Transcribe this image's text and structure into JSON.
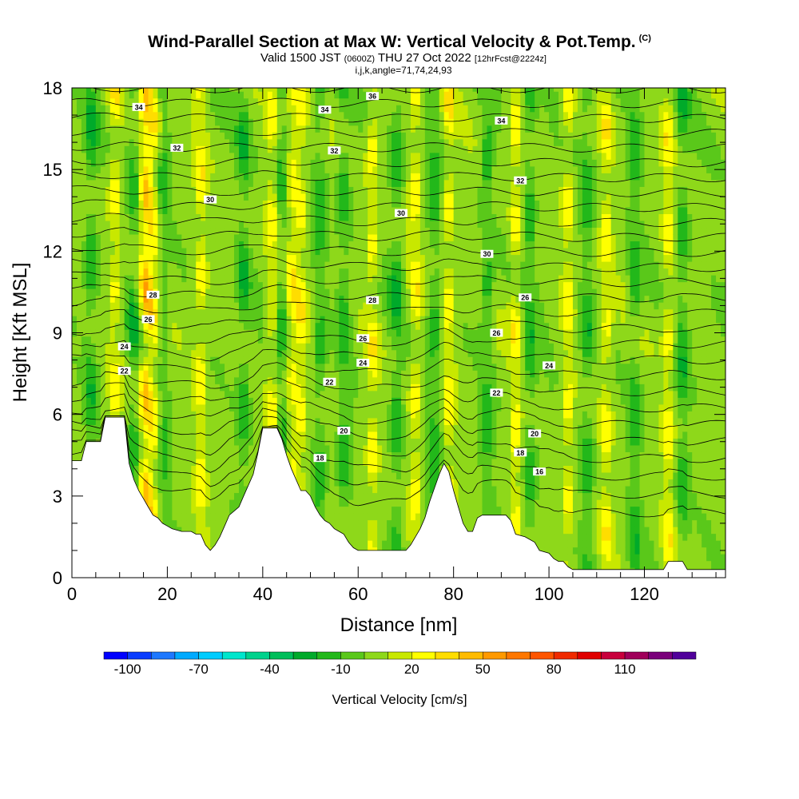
{
  "title": {
    "main": "Wind-Parallel Section at Max W: Vertical Velocity & Pot.Temp.",
    "copyright": "(C)",
    "valid_prefix": "Valid 1500 JST",
    "valid_utc": "(0600Z)",
    "valid_date": "THU 27 Oct 2022",
    "forecast": "[12hrFcst@2224z]",
    "indices": "i,j,k,angle=71,74,24,93"
  },
  "chart_data": {
    "type": "heatmap",
    "xlabel": "Distance [nm]",
    "ylabel": "Height [Kft MSL]",
    "xlim": [
      0,
      137
    ],
    "ylim": [
      0,
      18
    ],
    "x_ticks": [
      "0",
      "20",
      "40",
      "60",
      "80",
      "100",
      "120"
    ],
    "x_tick_values": [
      0,
      20,
      40,
      60,
      80,
      100,
      120
    ],
    "y_ticks": [
      "0",
      "3",
      "6",
      "9",
      "12",
      "15",
      "18"
    ],
    "y_tick_values": [
      0,
      3,
      6,
      9,
      12,
      15,
      18
    ],
    "terrain": [
      [
        0,
        4.3
      ],
      [
        2,
        4.3
      ],
      [
        3,
        5
      ],
      [
        6,
        5
      ],
      [
        7,
        5.9
      ],
      [
        11,
        5.9
      ],
      [
        12,
        4.2
      ],
      [
        13,
        3.6
      ],
      [
        14,
        3.2
      ],
      [
        15,
        2.9
      ],
      [
        16,
        2.6
      ],
      [
        17,
        2.3
      ],
      [
        18,
        2.2
      ],
      [
        19,
        2.0
      ],
      [
        20,
        1.9
      ],
      [
        21,
        1.8
      ],
      [
        23,
        1.7
      ],
      [
        25,
        1.7
      ],
      [
        26,
        1.6
      ],
      [
        27,
        1.6
      ],
      [
        28,
        1.2
      ],
      [
        29,
        1.0
      ],
      [
        30,
        1.2
      ],
      [
        31,
        1.5
      ],
      [
        32,
        1.9
      ],
      [
        33,
        2.3
      ],
      [
        35,
        2.6
      ],
      [
        36,
        3.0
      ],
      [
        37,
        3.4
      ],
      [
        38,
        3.8
      ],
      [
        39,
        4.6
      ],
      [
        40,
        5.5
      ],
      [
        43,
        5.5
      ],
      [
        44,
        5.1
      ],
      [
        45,
        4.5
      ],
      [
        46,
        4.0
      ],
      [
        47,
        3.6
      ],
      [
        48,
        3.2
      ],
      [
        49,
        3.2
      ],
      [
        50,
        3.0
      ],
      [
        51,
        2.6
      ],
      [
        52,
        2.3
      ],
      [
        53,
        2.1
      ],
      [
        54,
        2.0
      ],
      [
        55,
        1.8
      ],
      [
        56,
        1.7
      ],
      [
        57,
        1.6
      ],
      [
        58,
        1.3
      ],
      [
        59,
        1.1
      ],
      [
        60,
        1.0
      ],
      [
        62,
        1.0
      ],
      [
        64,
        1.0
      ],
      [
        66,
        1.0
      ],
      [
        69,
        1.0
      ],
      [
        70,
        1.0
      ],
      [
        71,
        1.2
      ],
      [
        72,
        1.5
      ],
      [
        73,
        1.8
      ],
      [
        74,
        2.2
      ],
      [
        75,
        2.8
      ],
      [
        76,
        3.3
      ],
      [
        77,
        3.8
      ],
      [
        78,
        4.2
      ],
      [
        79,
        3.9
      ],
      [
        80,
        3.2
      ],
      [
        81,
        2.6
      ],
      [
        82,
        2.0
      ],
      [
        83,
        1.7
      ],
      [
        84,
        1.7
      ],
      [
        85,
        2.2
      ],
      [
        86,
        2.3
      ],
      [
        87,
        2.3
      ],
      [
        88,
        2.3
      ],
      [
        89,
        2.3
      ],
      [
        90,
        2.3
      ],
      [
        91,
        2.3
      ],
      [
        92,
        2.1
      ],
      [
        93,
        1.6
      ],
      [
        95,
        1.5
      ],
      [
        97,
        1.3
      ],
      [
        98,
        1.0
      ],
      [
        100,
        0.9
      ],
      [
        101,
        0.7
      ],
      [
        102,
        0.6
      ],
      [
        103,
        0.6
      ],
      [
        104,
        0.4
      ],
      [
        105,
        0.3
      ],
      [
        110,
        0.3
      ],
      [
        115,
        0.3
      ],
      [
        120,
        0.3
      ],
      [
        124,
        0.3
      ],
      [
        125,
        0.6
      ],
      [
        128,
        0.6
      ],
      [
        129,
        0.3
      ],
      [
        132,
        0.3
      ],
      [
        137,
        0.3
      ]
    ],
    "colorbar": {
      "title": "Vertical Velocity [cm/s]",
      "labels": [
        "-100",
        "-70",
        "-40",
        "-10",
        "20",
        "50",
        "80",
        "110"
      ],
      "label_values": [
        -100,
        -70,
        -40,
        -10,
        20,
        50,
        80,
        110
      ],
      "min": -110,
      "step": 10,
      "colors": [
        "#0000ff",
        "#0a3cff",
        "#1e78ff",
        "#00aaff",
        "#00ccff",
        "#00e6cc",
        "#00d28c",
        "#00be5a",
        "#00aa2a",
        "#22b81a",
        "#5ac81a",
        "#8ed81a",
        "#c8e800",
        "#ffff00",
        "#ffdd00",
        "#ffbb00",
        "#ff9900",
        "#ff7700",
        "#ff5500",
        "#f02a00",
        "#e00000",
        "#c8003c",
        "#a0005a",
        "#7a007a",
        "#50009a"
      ]
    },
    "contour_labels": [
      {
        "value": "34",
        "x": 14,
        "y": 17.3
      },
      {
        "value": "36",
        "x": 63,
        "y": 17.7
      },
      {
        "value": "34",
        "x": 53,
        "y": 17.2
      },
      {
        "value": "34",
        "x": 90,
        "y": 16.8
      },
      {
        "value": "32",
        "x": 22,
        "y": 15.8
      },
      {
        "value": "32",
        "x": 55,
        "y": 15.7
      },
      {
        "value": "32",
        "x": 94,
        "y": 14.6
      },
      {
        "value": "30",
        "x": 29,
        "y": 13.9
      },
      {
        "value": "30",
        "x": 69,
        "y": 13.4
      },
      {
        "value": "30",
        "x": 87,
        "y": 11.9
      },
      {
        "value": "28",
        "x": 17,
        "y": 10.4
      },
      {
        "value": "28",
        "x": 63,
        "y": 10.2
      },
      {
        "value": "26",
        "x": 16,
        "y": 9.5
      },
      {
        "value": "26",
        "x": 61,
        "y": 8.8
      },
      {
        "value": "26",
        "x": 89,
        "y": 9.0
      },
      {
        "value": "26",
        "x": 95,
        "y": 10.3
      },
      {
        "value": "24",
        "x": 11,
        "y": 8.5
      },
      {
        "value": "24",
        "x": 61,
        "y": 7.9
      },
      {
        "value": "24",
        "x": 100,
        "y": 7.8
      },
      {
        "value": "22",
        "x": 11,
        "y": 7.6
      },
      {
        "value": "22",
        "x": 54,
        "y": 7.2
      },
      {
        "value": "22",
        "x": 89,
        "y": 6.8
      },
      {
        "value": "20",
        "x": 57,
        "y": 5.4
      },
      {
        "value": "20",
        "x": 97,
        "y": 5.3
      },
      {
        "value": "18",
        "x": 52,
        "y": 4.4
      },
      {
        "value": "18",
        "x": 94,
        "y": 4.6
      },
      {
        "value": "16",
        "x": 98,
        "y": 3.9
      }
    ],
    "contour_levels": [
      16,
      18,
      20,
      22,
      24,
      26,
      28,
      30,
      32,
      34,
      36
    ]
  }
}
